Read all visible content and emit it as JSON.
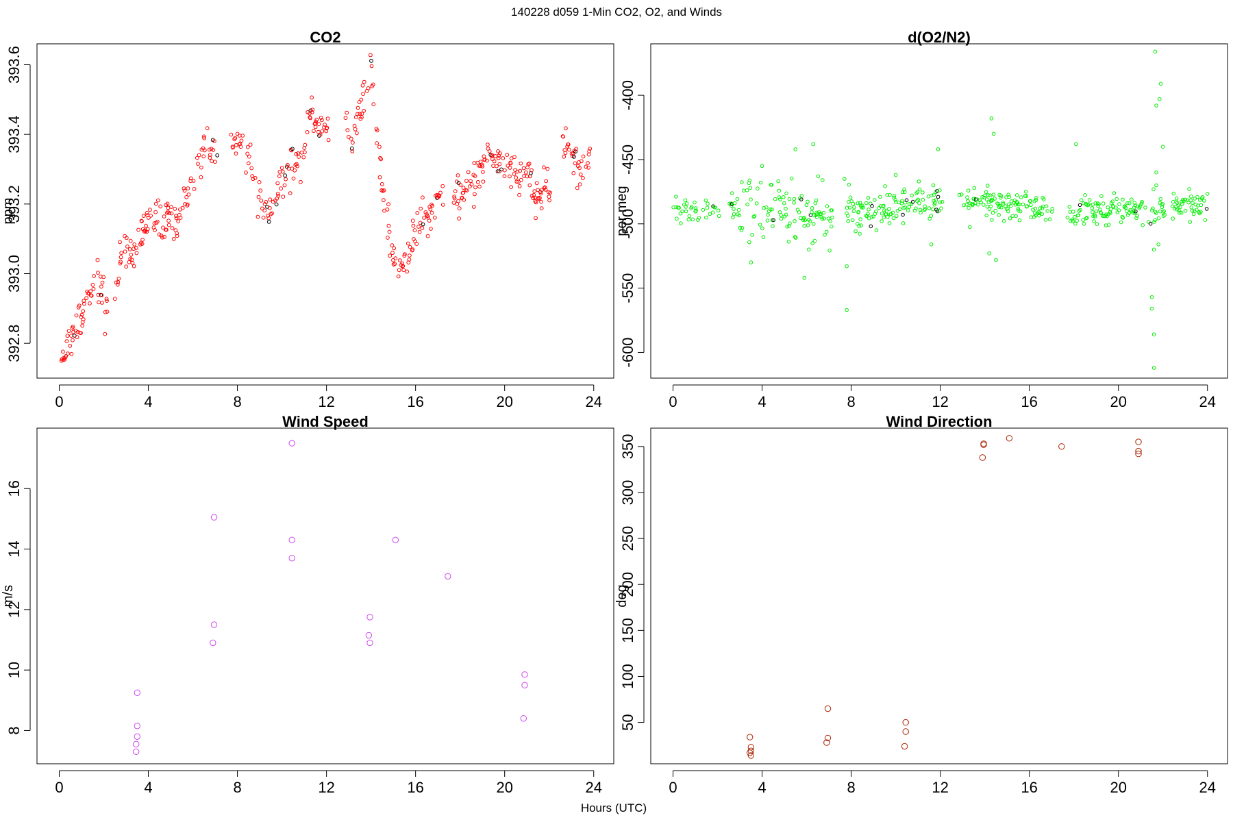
{
  "figure": {
    "title": "140228   d059   1-Min CO2, O2, and Winds",
    "xlabel": "Hours (UTC)"
  },
  "chart_data": [
    {
      "id": "co2",
      "type": "scatter",
      "title": "CO2",
      "ylabel": "ppm",
      "xlim": [
        -1,
        24.9
      ],
      "ylim": [
        392.7,
        393.66
      ],
      "xticks": [
        0,
        4,
        8,
        12,
        16,
        20,
        24
      ],
      "yticks": [
        392.8,
        393.0,
        393.2,
        393.4,
        393.6
      ],
      "ytick_labels": [
        "392.8",
        "393.0",
        "393.2",
        "393.4",
        "393.6"
      ],
      "color": "#ff0000",
      "marker_radius": 2.4,
      "series_profile": {
        "x": [
          0.1,
          0.5,
          0.9,
          1.3,
          1.7,
          2.1,
          2.6,
          3.0,
          3.4,
          3.8,
          4.2,
          4.6,
          5.0,
          5.4,
          5.8,
          6.2,
          6.6,
          7.0,
          7.8,
          8.2,
          8.6,
          9.0,
          9.4,
          9.8,
          10.2,
          10.6,
          11.0,
          11.3,
          11.7,
          12.0,
          12.9,
          13.2,
          13.5,
          13.8,
          14.0,
          14.2,
          14.4,
          14.7,
          15.0,
          15.3,
          15.6,
          16.0,
          16.4,
          16.8,
          17.2,
          17.8,
          18.2,
          18.6,
          19.0,
          19.4,
          19.8,
          20.2,
          20.6,
          21.0,
          21.4,
          21.8,
          22.1,
          22.7,
          23.0,
          23.3,
          23.6,
          23.9
        ],
        "y": [
          392.75,
          392.8,
          392.86,
          392.94,
          392.96,
          392.92,
          393.0,
          393.06,
          393.05,
          393.12,
          393.16,
          393.14,
          393.18,
          393.17,
          393.22,
          393.3,
          393.38,
          393.34,
          393.36,
          393.38,
          393.32,
          393.22,
          393.18,
          393.24,
          393.3,
          393.32,
          393.36,
          393.48,
          393.4,
          393.42,
          393.44,
          393.36,
          393.48,
          393.55,
          393.6,
          393.45,
          393.32,
          393.15,
          393.05,
          393.0,
          393.06,
          393.12,
          393.17,
          393.2,
          393.22,
          393.22,
          393.24,
          393.26,
          393.32,
          393.36,
          393.32,
          393.3,
          393.28,
          393.3,
          393.22,
          393.24,
          393.26,
          393.36,
          393.34,
          393.28,
          393.3,
          393.35
        ],
        "gaps": [
          [
            2.2,
            2.5
          ],
          [
            7.1,
            7.7
          ],
          [
            12.1,
            12.8
          ],
          [
            17.3,
            17.7
          ],
          [
            22.2,
            22.6
          ]
        ],
        "spread": 0.028,
        "step_min": 0.0167
      }
    },
    {
      "id": "o2",
      "type": "scatter",
      "title": "d(O2/N2)",
      "ylabel": "per meg",
      "xlim": [
        -1,
        24.9
      ],
      "ylim": [
        -620,
        -360
      ],
      "xticks": [
        0,
        4,
        8,
        12,
        16,
        20,
        24
      ],
      "yticks": [
        -600,
        -550,
        -500,
        -450,
        -400
      ],
      "ytick_labels": [
        "-600",
        "-550",
        "-500",
        "-450",
        "-400"
      ],
      "color": "#00ee00",
      "marker_radius": 2.3,
      "series_profile": {
        "x": [
          0.0,
          1.0,
          2.0,
          3.0,
          4.0,
          5.0,
          6.0,
          7.0,
          7.8,
          9.0,
          10.0,
          11.0,
          12.0,
          12.8,
          14.0,
          15.0,
          16.0,
          17.0,
          17.8,
          19.0,
          20.0,
          21.0,
          22.0,
          23.0,
          24.0
        ],
        "y": [
          -490,
          -490,
          -489,
          -487,
          -488,
          -490,
          -491,
          -491,
          -490,
          -489,
          -487,
          -484,
          -482,
          -483,
          -482,
          -486,
          -487,
          -489,
          -491,
          -490,
          -489,
          -489,
          -487,
          -486,
          -484
        ],
        "gaps": [
          [
            2.1,
            2.5
          ],
          [
            7.2,
            7.7
          ],
          [
            12.1,
            12.8
          ],
          [
            17.1,
            17.7
          ],
          [
            22.1,
            22.4
          ]
        ],
        "spread": 5,
        "noisy_ranges": [
          [
            3.0,
            7.1,
            14
          ],
          [
            7.7,
            11.9,
            7
          ],
          [
            12.8,
            16.6,
            5
          ],
          [
            17.7,
            21.8,
            6
          ]
        ],
        "outliers": [
          {
            "x": 3.5,
            "y": -530
          },
          {
            "x": 4.0,
            "y": -455
          },
          {
            "x": 5.5,
            "y": -442
          },
          {
            "x": 5.9,
            "y": -542
          },
          {
            "x": 6.1,
            "y": -520
          },
          {
            "x": 6.3,
            "y": -438
          },
          {
            "x": 7.8,
            "y": -567
          },
          {
            "x": 7.8,
            "y": -533
          },
          {
            "x": 7.7,
            "y": -465
          },
          {
            "x": 10.0,
            "y": -462
          },
          {
            "x": 11.6,
            "y": -516
          },
          {
            "x": 11.9,
            "y": -442
          },
          {
            "x": 14.3,
            "y": -418
          },
          {
            "x": 14.4,
            "y": -430
          },
          {
            "x": 14.2,
            "y": -523
          },
          {
            "x": 14.5,
            "y": -528
          },
          {
            "x": 18.1,
            "y": -438
          },
          {
            "x": 21.6,
            "y": -612
          },
          {
            "x": 21.6,
            "y": -586
          },
          {
            "x": 21.5,
            "y": -557
          },
          {
            "x": 21.5,
            "y": -566
          },
          {
            "x": 21.6,
            "y": -520
          },
          {
            "x": 21.7,
            "y": -408
          },
          {
            "x": 21.9,
            "y": -391
          },
          {
            "x": 21.85,
            "y": -403
          },
          {
            "x": 22.0,
            "y": -440
          },
          {
            "x": 21.65,
            "y": -366
          },
          {
            "x": 21.8,
            "y": -516
          },
          {
            "x": 21.7,
            "y": -460
          },
          {
            "x": 21.7,
            "y": -470
          }
        ]
      }
    },
    {
      "id": "wind-speed",
      "type": "scatter",
      "title": "Wind Speed",
      "ylabel": "m/s",
      "xlim": [
        -1,
        24.9
      ],
      "ylim": [
        6.9,
        18.0
      ],
      "xticks": [
        0,
        4,
        8,
        12,
        16,
        20,
        24
      ],
      "yticks": [
        8,
        10,
        12,
        14,
        16
      ],
      "ytick_labels": [
        "8",
        "10",
        "12",
        "14",
        "16"
      ],
      "color": "#cc44ee",
      "marker_radius": 4.2,
      "points": [
        {
          "x": 3.5,
          "y": 9.25
        },
        {
          "x": 3.5,
          "y": 8.15
        },
        {
          "x": 3.5,
          "y": 7.8
        },
        {
          "x": 3.45,
          "y": 7.55
        },
        {
          "x": 3.45,
          "y": 7.3
        },
        {
          "x": 6.95,
          "y": 15.05
        },
        {
          "x": 6.95,
          "y": 11.5
        },
        {
          "x": 6.9,
          "y": 10.9
        },
        {
          "x": 10.45,
          "y": 17.5
        },
        {
          "x": 10.45,
          "y": 14.3
        },
        {
          "x": 10.45,
          "y": 13.7
        },
        {
          "x": 13.95,
          "y": 11.75
        },
        {
          "x": 13.9,
          "y": 11.15
        },
        {
          "x": 13.95,
          "y": 10.9
        },
        {
          "x": 15.1,
          "y": 14.3
        },
        {
          "x": 17.45,
          "y": 13.1
        },
        {
          "x": 20.9,
          "y": 9.85
        },
        {
          "x": 20.9,
          "y": 9.5
        },
        {
          "x": 20.85,
          "y": 8.4
        }
      ]
    },
    {
      "id": "wind-direction",
      "type": "scatter",
      "title": "Wind Direction",
      "ylabel": "deg",
      "xlim": [
        -1,
        24.9
      ],
      "ylim": [
        5,
        370
      ],
      "xticks": [
        0,
        4,
        8,
        12,
        16,
        20,
        24
      ],
      "yticks": [
        50,
        100,
        150,
        200,
        250,
        300,
        350
      ],
      "ytick_labels": [
        "50",
        "100",
        "150",
        "200",
        "250",
        "300",
        "350"
      ],
      "color": "#aa2200",
      "marker_radius": 4.2,
      "points": [
        {
          "x": 3.45,
          "y": 34
        },
        {
          "x": 3.5,
          "y": 23
        },
        {
          "x": 3.5,
          "y": 19
        },
        {
          "x": 3.45,
          "y": 17
        },
        {
          "x": 3.5,
          "y": 14
        },
        {
          "x": 6.95,
          "y": 65
        },
        {
          "x": 6.95,
          "y": 33
        },
        {
          "x": 6.9,
          "y": 28
        },
        {
          "x": 10.45,
          "y": 50
        },
        {
          "x": 10.45,
          "y": 40
        },
        {
          "x": 10.4,
          "y": 24
        },
        {
          "x": 13.95,
          "y": 353
        },
        {
          "x": 13.95,
          "y": 352
        },
        {
          "x": 13.9,
          "y": 338
        },
        {
          "x": 15.1,
          "y": 359
        },
        {
          "x": 17.45,
          "y": 350
        },
        {
          "x": 20.9,
          "y": 355
        },
        {
          "x": 20.9,
          "y": 345
        },
        {
          "x": 20.9,
          "y": 342
        }
      ]
    }
  ]
}
